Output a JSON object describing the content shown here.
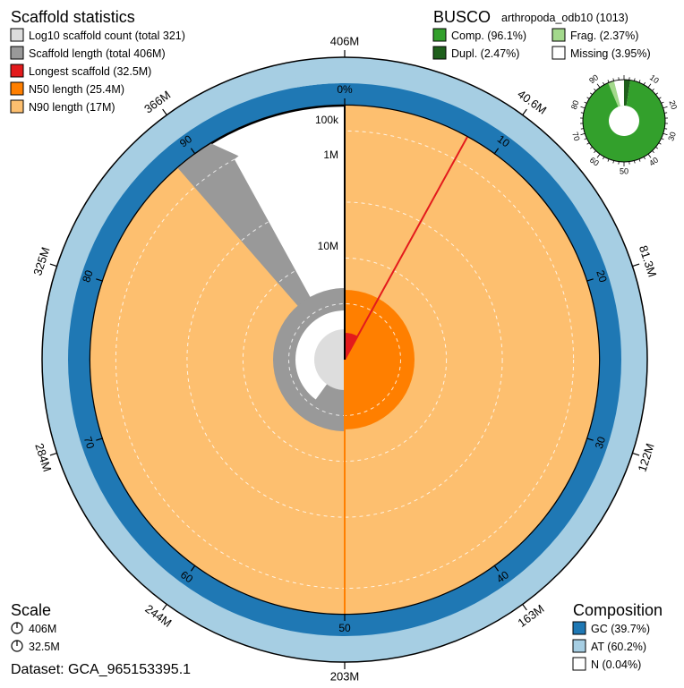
{
  "chart_data": {
    "type": "snail",
    "scaffold_stats": {
      "title": "Scaffold statistics",
      "legend": [
        {
          "label": "Log10 scaffold count (total 321)",
          "color": "#dddddd"
        },
        {
          "label": "Scaffold length (total 406M)",
          "color": "#999999"
        },
        {
          "label": "Longest scaffold (32.5M)",
          "color": "#e31a1c"
        },
        {
          "label": "N50 length (25.4M)",
          "color": "#ff7f00"
        },
        {
          "label": "N90 length (17M)",
          "color": "#fdbf6f"
        }
      ],
      "total_length_bp": 406000000,
      "longest_bp": 32500000,
      "n50_bp": 25400000,
      "n90_bp": 17000000,
      "scaffold_count": 321
    },
    "busco": {
      "title": "BUSCO",
      "lineage": "arthropoda_odb10 (1013)",
      "legend": [
        {
          "label": "Comp. (96.1%)",
          "color": "#33a02c"
        },
        {
          "label": "Dupl. (2.47%)",
          "color": "#1f5f1c"
        },
        {
          "label": "Frag. (2.37%)",
          "color": "#a3d98c"
        },
        {
          "label": "Missing (3.95%)",
          "color": "#ffffff"
        }
      ],
      "complete_pct": 96.1,
      "duplicated_pct": 2.47,
      "fragmented_pct": 2.37,
      "missing_pct": 3.95,
      "ticks": [
        "10",
        "20",
        "30",
        "40",
        "50",
        "60",
        "70",
        "80",
        "90"
      ]
    },
    "composition": {
      "title": "Composition",
      "legend": [
        {
          "label": "GC (39.7%)",
          "color": "#1f78b4"
        },
        {
          "label": "AT (60.2%)",
          "color": "#a6cee3"
        },
        {
          "label": "N (0.04%)",
          "color": "#ffffff"
        }
      ],
      "gc_pct": 39.7,
      "at_pct": 60.2,
      "n_pct": 0.04
    },
    "scale": {
      "title": "Scale",
      "items": [
        "406M",
        "32.5M"
      ]
    },
    "outer_ticks": [
      "406M",
      "40.6M",
      "81.3M",
      "122M",
      "163M",
      "203M",
      "244M",
      "284M",
      "325M",
      "366M"
    ],
    "percent_ticks": [
      "0%",
      "10",
      "20",
      "30",
      "40",
      "50",
      "60",
      "70",
      "80",
      "90"
    ],
    "radial_labels": [
      "100k",
      "1M",
      "10M"
    ],
    "scaffold_length_profile": {
      "percent": [
        0.2,
        0.5,
        1,
        2,
        3,
        4,
        5,
        6,
        7,
        7.8,
        8.5,
        10,
        13,
        16,
        20
      ],
      "radius_fraction": [
        0.95,
        0.87,
        0.8,
        0.72,
        0.64,
        0.57,
        0.5,
        0.44,
        0.39,
        0.34,
        0.3,
        0.27,
        0.26,
        0.24,
        0.22
      ]
    },
    "dataset_label": "Dataset: GCA_965153395.1"
  }
}
